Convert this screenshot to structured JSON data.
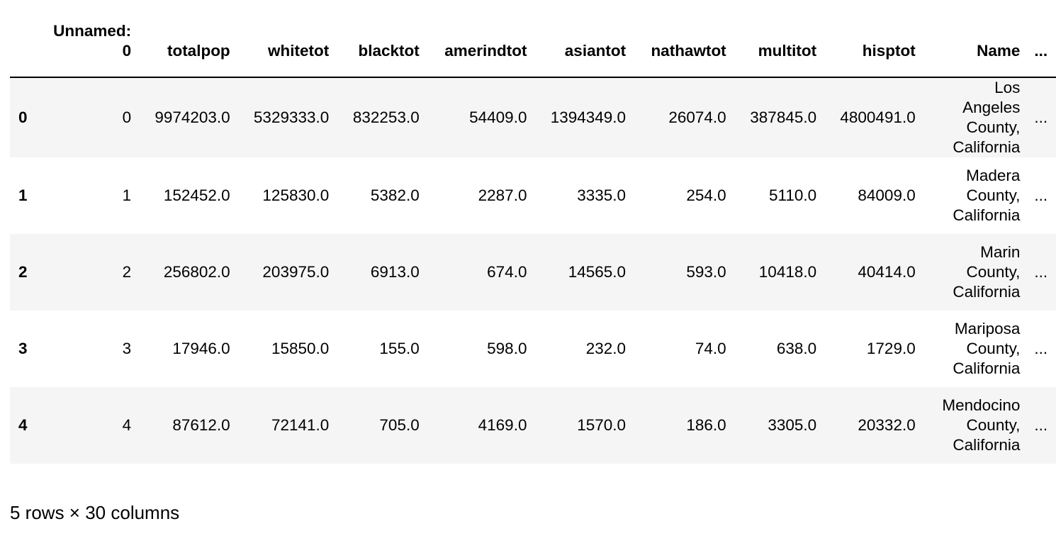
{
  "table": {
    "index_header": "",
    "columns": [
      {
        "key": "unnamed",
        "label_lines": [
          "Unnamed:",
          "0"
        ]
      },
      {
        "key": "totalpop",
        "label": "totalpop"
      },
      {
        "key": "whitetot",
        "label": "whitetot"
      },
      {
        "key": "blacktot",
        "label": "blacktot"
      },
      {
        "key": "amerindtot",
        "label": "amerindtot"
      },
      {
        "key": "asiantot",
        "label": "asiantot"
      },
      {
        "key": "nathawtot",
        "label": "nathawtot"
      },
      {
        "key": "multitot",
        "label": "multitot"
      },
      {
        "key": "hisptot",
        "label": "hisptot"
      },
      {
        "key": "name",
        "label": "Name"
      }
    ],
    "ellipsis": "...",
    "rows": [
      {
        "index": "0",
        "unnamed": "0",
        "totalpop": "9974203.0",
        "whitetot": "5329333.0",
        "blacktot": "832253.0",
        "amerindtot": "54409.0",
        "asiantot": "1394349.0",
        "nathawtot": "26074.0",
        "multitot": "387845.0",
        "hisptot": "4800491.0",
        "name_lines": [
          "Los",
          "Angeles",
          "County,",
          "California"
        ],
        "ellipsis": "..."
      },
      {
        "index": "1",
        "unnamed": "1",
        "totalpop": "152452.0",
        "whitetot": "125830.0",
        "blacktot": "5382.0",
        "amerindtot": "2287.0",
        "asiantot": "3335.0",
        "nathawtot": "254.0",
        "multitot": "5110.0",
        "hisptot": "84009.0",
        "name_lines": [
          "Madera",
          "County,",
          "California"
        ],
        "ellipsis": "..."
      },
      {
        "index": "2",
        "unnamed": "2",
        "totalpop": "256802.0",
        "whitetot": "203975.0",
        "blacktot": "6913.0",
        "amerindtot": "674.0",
        "asiantot": "14565.0",
        "nathawtot": "593.0",
        "multitot": "10418.0",
        "hisptot": "40414.0",
        "name_lines": [
          "Marin",
          "County,",
          "California"
        ],
        "ellipsis": "..."
      },
      {
        "index": "3",
        "unnamed": "3",
        "totalpop": "17946.0",
        "whitetot": "15850.0",
        "blacktot": "155.0",
        "amerindtot": "598.0",
        "asiantot": "232.0",
        "nathawtot": "74.0",
        "multitot": "638.0",
        "hisptot": "1729.0",
        "name_lines": [
          "Mariposa",
          "County,",
          "California"
        ],
        "ellipsis": "..."
      },
      {
        "index": "4",
        "unnamed": "4",
        "totalpop": "87612.0",
        "whitetot": "72141.0",
        "blacktot": "705.0",
        "amerindtot": "4169.0",
        "asiantot": "1570.0",
        "nathawtot": "186.0",
        "multitot": "3305.0",
        "hisptot": "20332.0",
        "name_lines": [
          "Mendocino",
          "County,",
          "California"
        ],
        "ellipsis": "..."
      }
    ]
  },
  "footer": {
    "summary": "5 rows × 30 columns"
  }
}
